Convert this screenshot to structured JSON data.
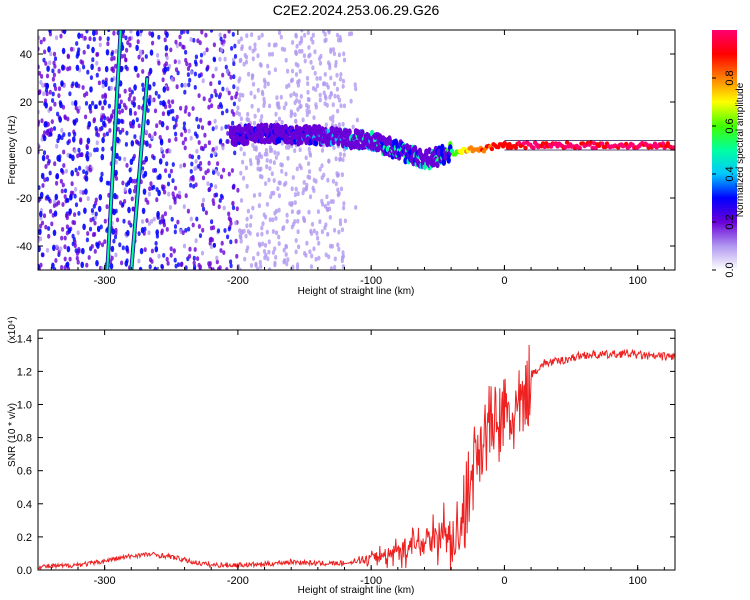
{
  "title": "C2E2.2024.253.06.29.G26",
  "chart_data": [
    {
      "type": "heatmap",
      "xlabel": "Height of straight line (km)",
      "ylabel": "Frequency (Hz)",
      "xlim": [
        -350,
        128
      ],
      "ylim": [
        -50,
        50
      ],
      "xticks": [
        -300,
        -200,
        -100,
        0,
        100
      ],
      "yticks": [
        -40,
        -20,
        0,
        20,
        40
      ],
      "colorbar": {
        "label": "Normalized spectral amplitude",
        "range": [
          0,
          1
        ],
        "ticks": [
          "0.0",
          "0.2",
          "0.4",
          "0.6",
          "0.8"
        ],
        "colormap": [
          "#ffffff",
          "#b098f0",
          "#6a00d8",
          "#0000ff",
          "#00c8ff",
          "#00ffa0",
          "#40ff00",
          "#ffff00",
          "#ff8000",
          "#ff0000",
          "#ff0070"
        ]
      },
      "main_trace": {
        "x": [
          -200,
          -180,
          -160,
          -140,
          -120,
          -100,
          -90,
          -80,
          -70,
          -60,
          -50,
          -40,
          -30,
          -20,
          -10,
          0,
          20,
          40,
          60,
          80,
          100,
          128
        ],
        "freq": [
          6,
          7,
          6,
          6,
          5,
          4,
          2,
          0,
          -2,
          -4,
          -3,
          -1,
          0,
          0,
          1,
          2,
          2,
          2,
          2,
          2,
          2,
          2
        ],
        "amplitude": [
          0.3,
          0.35,
          0.35,
          0.4,
          0.45,
          0.5,
          0.55,
          0.55,
          0.55,
          0.5,
          0.55,
          0.6,
          0.75,
          0.85,
          0.9,
          0.95,
          1.0,
          1.0,
          1.0,
          1.0,
          1.0,
          1.0
        ]
      },
      "streaks": [
        {
          "x": [
            -298,
            -288
          ],
          "freq": [
            -50,
            50
          ],
          "amplitude": 0.45
        },
        {
          "x": [
            -280,
            -268
          ],
          "freq": [
            -50,
            30
          ],
          "amplitude": 0.5
        }
      ]
    },
    {
      "type": "line",
      "xlabel": "Height of straight line (km)",
      "ylabel": "SNR (10 * v/v)",
      "y_multiplier": "(x10⁴)",
      "xlim": [
        -350,
        128
      ],
      "ylim": [
        0,
        1.45
      ],
      "xticks": [
        -300,
        -200,
        -100,
        0,
        100
      ],
      "yticks": [
        0.0,
        0.2,
        0.4,
        0.6,
        0.8,
        1.0,
        1.2,
        1.4
      ],
      "series": [
        {
          "color": "#ee2020",
          "x": [
            -350,
            -330,
            -310,
            -290,
            -275,
            -265,
            -250,
            -235,
            -220,
            -200,
            -180,
            -160,
            -140,
            -120,
            -105,
            -95,
            -85,
            -75,
            -65,
            -55,
            -50,
            -45,
            -40,
            -35,
            -30,
            -25,
            -20,
            -15,
            -10,
            -5,
            0,
            5,
            10,
            15,
            20,
            30,
            40,
            50,
            60,
            70,
            80,
            90,
            100,
            110,
            128
          ],
          "y": [
            0.02,
            0.025,
            0.04,
            0.07,
            0.09,
            0.095,
            0.08,
            0.05,
            0.03,
            0.03,
            0.035,
            0.05,
            0.04,
            0.04,
            0.06,
            0.08,
            0.1,
            0.13,
            0.15,
            0.2,
            0.2,
            0.22,
            0.18,
            0.2,
            0.35,
            0.55,
            0.75,
            0.8,
            0.9,
            0.85,
            0.95,
            0.9,
            0.95,
            1.0,
            1.18,
            1.25,
            1.26,
            1.28,
            1.3,
            1.3,
            1.3,
            1.31,
            1.3,
            1.29,
            1.29
          ]
        }
      ]
    }
  ]
}
